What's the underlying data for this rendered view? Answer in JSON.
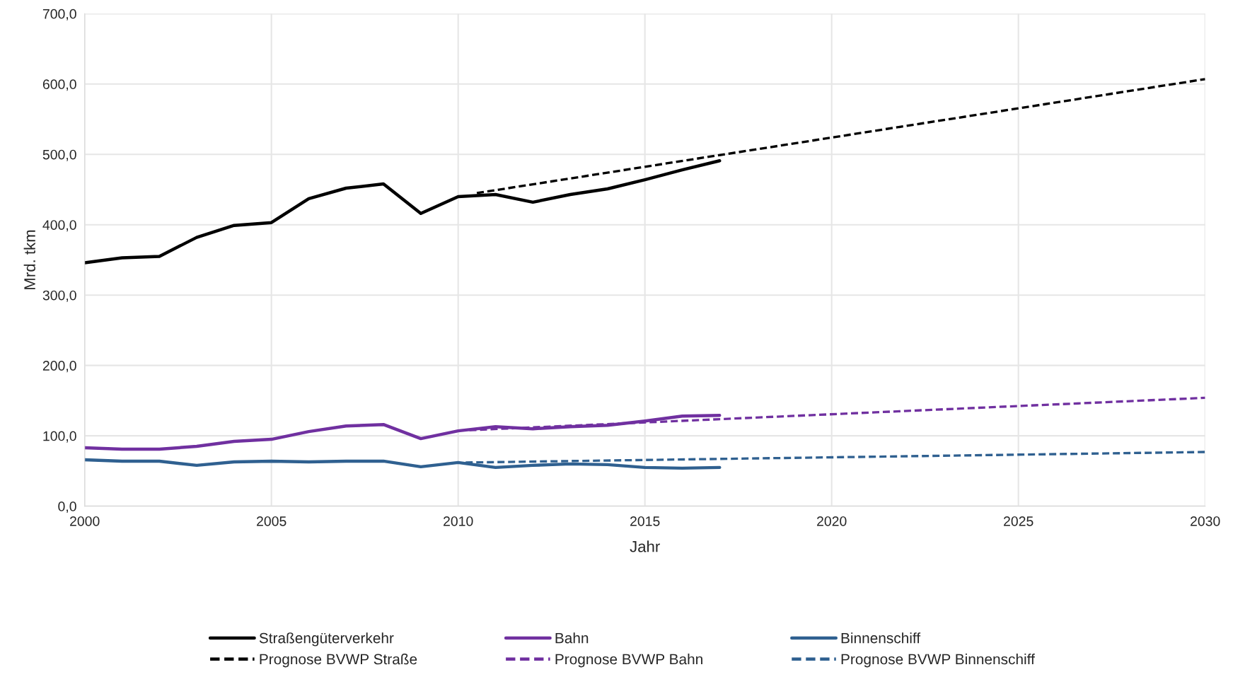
{
  "chart_data": {
    "type": "line",
    "xlabel": "Jahr",
    "ylabel": "Mrd. tkm",
    "xlim": [
      2000,
      2030
    ],
    "xticks": [
      2000,
      2005,
      2010,
      2015,
      2020,
      2025,
      2030
    ],
    "ylim": [
      0,
      700
    ],
    "yticks": [
      {
        "value": 0,
        "label": "0,0"
      },
      {
        "value": 100,
        "label": "100,0"
      },
      {
        "value": 200,
        "label": "200,0"
      },
      {
        "value": 300,
        "label": "300,0"
      },
      {
        "value": 400,
        "label": "400,0"
      },
      {
        "value": 500,
        "label": "500,0"
      },
      {
        "value": 600,
        "label": "600,0"
      },
      {
        "value": 700,
        "label": "700,0"
      }
    ],
    "grid": true,
    "legend": "bottom",
    "marker": "none",
    "x": [
      2000,
      2001,
      2002,
      2003,
      2004,
      2005,
      2006,
      2007,
      2008,
      2009,
      2010,
      2011,
      2012,
      2013,
      2014,
      2015,
      2016,
      2017
    ],
    "series": [
      {
        "name": "Straßengüterverkehr",
        "color": "#000000",
        "line_style": "solid",
        "values": [
          346,
          353,
          355,
          382,
          399,
          403,
          437,
          452,
          458,
          416,
          440,
          443,
          432,
          443,
          451,
          464,
          478,
          491
        ]
      },
      {
        "name": "Bahn",
        "color": "#7030a0",
        "line_style": "solid",
        "values": [
          83,
          81,
          81,
          85,
          92,
          95,
          106,
          114,
          116,
          96,
          107,
          113,
          110,
          113,
          115,
          121,
          128,
          129
        ]
      },
      {
        "name": "Binnenschiff",
        "color": "#2f6090",
        "line_style": "solid",
        "values": [
          66,
          64,
          64,
          58,
          63,
          64,
          63,
          64,
          64,
          56,
          62,
          55,
          58,
          60,
          59,
          55,
          54,
          55
        ]
      },
      {
        "name": "Prognose BVWP Straße",
        "color": "#000000",
        "line_style": "dashed",
        "x": [
          2010.5,
          2030
        ],
        "values": [
          445,
          607
        ]
      },
      {
        "name": "Prognose BVWP Bahn",
        "color": "#7030a0",
        "line_style": "dashed",
        "x": [
          2010.3,
          2030
        ],
        "values": [
          108,
          154
        ]
      },
      {
        "name": "Prognose BVWP Binnenschiff",
        "color": "#2f6090",
        "line_style": "dashed",
        "x": [
          2010.2,
          2030
        ],
        "values": [
          62,
          77
        ]
      }
    ]
  }
}
